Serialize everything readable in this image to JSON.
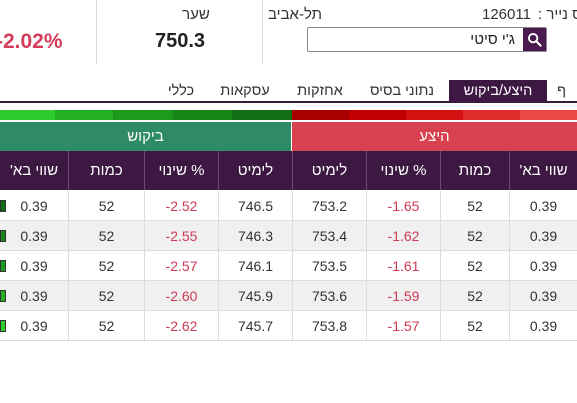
{
  "header": {
    "change_pct": "-2.02%",
    "price_label": "שער",
    "price_value": "750.3",
    "exchange": "תל-אביב",
    "security_number_label": "מס נייר :",
    "security_number": "126011",
    "search_value": "ג'י סיטי"
  },
  "tabs": [
    {
      "label": "ף"
    },
    {
      "label": "היצע/ביקוש"
    },
    {
      "label": "נתוני בסיס"
    },
    {
      "label": "אחזקות"
    },
    {
      "label": "עסקאות"
    },
    {
      "label": "כללי"
    }
  ],
  "depth_colors": [
    "#2ecc2e",
    "#22b022",
    "#1c9a1c",
    "#178617",
    "#136f13",
    "#a80000",
    "#c00000",
    "#d41010",
    "#e02b2b",
    "#ec4747"
  ],
  "banners": {
    "bid": "ביקוש",
    "ask": "היצע"
  },
  "columns": {
    "bid_value": "שווי בא'",
    "bid_qty": "כמות",
    "bid_change": "% שינוי",
    "bid_limit": "לימיט",
    "ask_limit": "לימיט",
    "ask_change": "% שינוי",
    "ask_qty": "כמות",
    "ask_value": "שווי בא'"
  },
  "rows": [
    {
      "bid_value": "0.39",
      "bid_qty": "52",
      "bid_change": "-2.52",
      "bid_limit": "746.5",
      "ask_limit": "753.2",
      "ask_change": "-1.65",
      "ask_qty": "52",
      "ask_value": "0.39",
      "bar_color": "#126f12"
    },
    {
      "bid_value": "0.39",
      "bid_qty": "52",
      "bid_change": "-2.55",
      "bid_limit": "746.3",
      "ask_limit": "753.4",
      "ask_change": "-1.62",
      "ask_qty": "52",
      "ask_value": "0.39",
      "bar_color": "#178617"
    },
    {
      "bid_value": "0.39",
      "bid_qty": "52",
      "bid_change": "-2.57",
      "bid_limit": "746.1",
      "ask_limit": "753.5",
      "ask_change": "-1.61",
      "ask_qty": "52",
      "ask_value": "0.39",
      "bar_color": "#1c9a1c"
    },
    {
      "bid_value": "0.39",
      "bid_qty": "52",
      "bid_change": "-2.60",
      "bid_limit": "745.9",
      "ask_limit": "753.6",
      "ask_change": "-1.59",
      "ask_qty": "52",
      "ask_value": "0.39",
      "bar_color": "#22b022"
    },
    {
      "bid_value": "0.39",
      "bid_qty": "52",
      "bid_change": "-2.62",
      "bid_limit": "745.7",
      "ask_limit": "753.8",
      "ask_change": "-1.57",
      "ask_qty": "52",
      "ask_value": "0.39",
      "bar_color": "#2ecc2e"
    }
  ]
}
